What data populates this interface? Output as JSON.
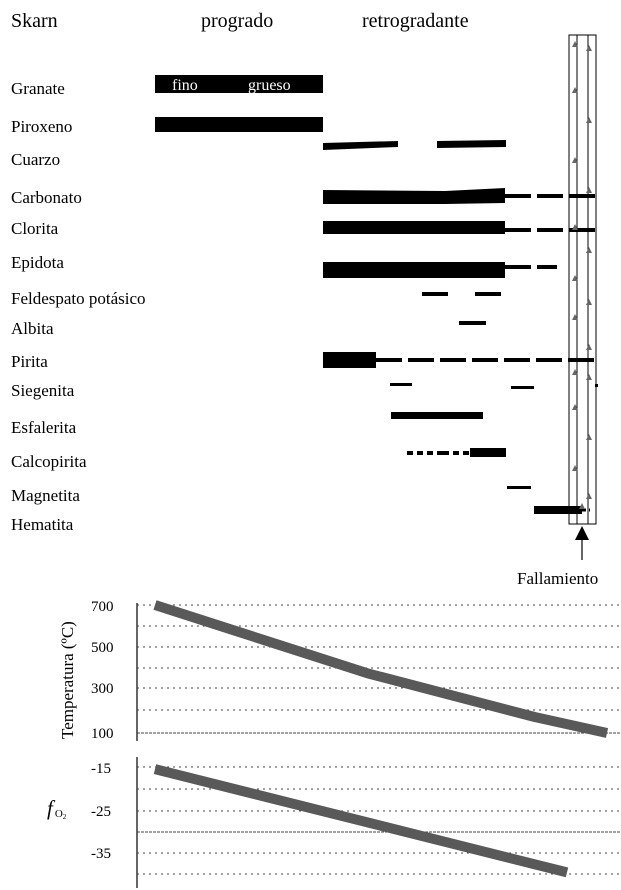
{
  "headers": {
    "skarn": "Skarn",
    "progrado": "progrado",
    "retrogradante": "retrogradante"
  },
  "minerals": [
    {
      "name": "Granate",
      "segments": [
        {
          "style": "solid",
          "thickness": "thick",
          "labels": [
            "fino",
            "grueso"
          ]
        }
      ]
    },
    {
      "name": "Piroxeno",
      "segments": [
        {
          "style": "solid",
          "thickness": "thick"
        }
      ]
    },
    {
      "name": "Cuarzo",
      "segments": [
        {
          "style": "solid",
          "thickness": "medium"
        },
        {
          "style": "solid",
          "thickness": "medium"
        }
      ]
    },
    {
      "name": "Carbonato",
      "segments": [
        {
          "style": "solid",
          "thickness": "thick"
        },
        {
          "style": "dashed",
          "thickness": "medium"
        }
      ]
    },
    {
      "name": "Clorita",
      "segments": [
        {
          "style": "solid",
          "thickness": "thick"
        },
        {
          "style": "dashed",
          "thickness": "medium"
        }
      ]
    },
    {
      "name": "Epidota",
      "segments": [
        {
          "style": "solid",
          "thickness": "thick"
        },
        {
          "style": "dashed",
          "thickness": "medium"
        }
      ]
    },
    {
      "name": "Feldespato potásico",
      "segments": [
        {
          "style": "solid",
          "thickness": "thin"
        },
        {
          "style": "solid",
          "thickness": "thin"
        }
      ]
    },
    {
      "name": "Albita",
      "segments": [
        {
          "style": "solid",
          "thickness": "thin"
        }
      ]
    },
    {
      "name": "Pirita",
      "segments": [
        {
          "style": "solid",
          "thickness": "thick"
        },
        {
          "style": "dashed",
          "thickness": "medium"
        }
      ]
    },
    {
      "name": "Siegenita",
      "segments": [
        {
          "style": "solid",
          "thickness": "thin"
        },
        {
          "style": "solid",
          "thickness": "thin"
        }
      ]
    },
    {
      "name": "Esfalerita",
      "segments": [
        {
          "style": "solid",
          "thickness": "medium"
        }
      ]
    },
    {
      "name": "Calcopirita",
      "segments": [
        {
          "style": "dash-dot",
          "thickness": "thin"
        },
        {
          "style": "solid",
          "thickness": "medium"
        }
      ]
    },
    {
      "name": "Magnetita",
      "segments": [
        {
          "style": "solid",
          "thickness": "thin"
        }
      ]
    },
    {
      "name": "Hematita",
      "segments": [
        {
          "style": "solid",
          "thickness": "medium"
        }
      ]
    }
  ],
  "fault": {
    "label": "Fallamiento",
    "marker": "up-arrow-icon",
    "symbol": "triangle-icon"
  },
  "chart_data": [
    {
      "type": "line",
      "ylabel": "Temperatura (ºC)",
      "xlabel": "",
      "yticks": [
        "700",
        "500",
        "300",
        "100"
      ],
      "ylim": [
        100,
        700
      ],
      "grid": true,
      "grid_style": "dotted",
      "x": [
        0,
        0.47,
        0.84,
        1.0
      ],
      "series": [
        {
          "values": [
            700,
            380,
            175,
            100
          ]
        }
      ]
    },
    {
      "type": "line",
      "ylabel": "f",
      "ylabel_sub": "O",
      "ylabel_sub2": "2",
      "xlabel": "",
      "yticks": [
        "-15",
        "-25",
        "-35"
      ],
      "ylim": [
        -40,
        -15
      ],
      "grid": true,
      "grid_style": "dotted",
      "x": [
        0,
        1.0
      ],
      "series": [
        {
          "values": [
            -15.5,
            -39.5
          ]
        }
      ]
    }
  ],
  "colors": {
    "bar": "#000000",
    "trend_line": "#595959",
    "grid": "#444444",
    "fault_triangle": "#666666"
  }
}
